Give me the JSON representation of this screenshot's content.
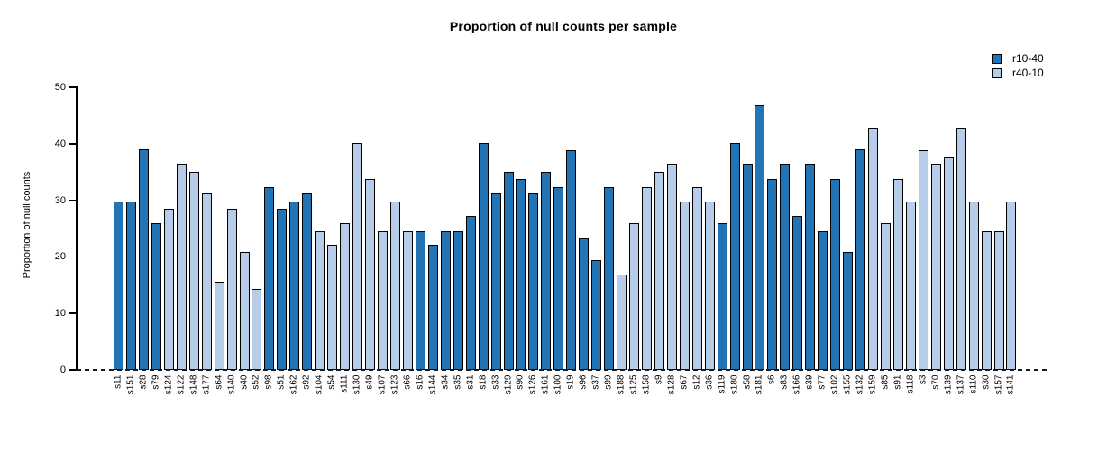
{
  "chart_data": {
    "type": "bar",
    "title": "Proportion of null counts per sample",
    "xlabel": "",
    "ylabel": "Proportion of null counts",
    "ylim": [
      0,
      50
    ],
    "yticks": [
      0,
      10,
      20,
      30,
      40,
      50
    ],
    "grid": false,
    "legend_position": "top-right",
    "zero_line_style": "dashed",
    "axis_color": "#000000",
    "bar_border_color": "#000000",
    "series": [
      {
        "name": "r10-40",
        "color": "#2374b5"
      },
      {
        "name": "r40-10",
        "color": "#b7cce8"
      }
    ],
    "bars": [
      {
        "label": "s11",
        "value": 29.8,
        "series": "r10-40"
      },
      {
        "label": "s151",
        "value": 29.8,
        "series": "r10-40"
      },
      {
        "label": "s28",
        "value": 39.0,
        "series": "r10-40"
      },
      {
        "label": "s79",
        "value": 26.0,
        "series": "r10-40"
      },
      {
        "label": "s124",
        "value": 28.5,
        "series": "r40-10"
      },
      {
        "label": "s122",
        "value": 36.4,
        "series": "r40-10"
      },
      {
        "label": "s148",
        "value": 35.0,
        "series": "r40-10"
      },
      {
        "label": "s177",
        "value": 31.2,
        "series": "r40-10"
      },
      {
        "label": "s64",
        "value": 15.6,
        "series": "r40-10"
      },
      {
        "label": "s140",
        "value": 28.5,
        "series": "r40-10"
      },
      {
        "label": "s40",
        "value": 20.8,
        "series": "r40-10"
      },
      {
        "label": "s52",
        "value": 14.3,
        "series": "r40-10"
      },
      {
        "label": "s98",
        "value": 32.4,
        "series": "r10-40"
      },
      {
        "label": "s51",
        "value": 28.5,
        "series": "r10-40"
      },
      {
        "label": "s162",
        "value": 29.8,
        "series": "r10-40"
      },
      {
        "label": "s92",
        "value": 31.2,
        "series": "r10-40"
      },
      {
        "label": "s104",
        "value": 24.5,
        "series": "r40-10"
      },
      {
        "label": "s54",
        "value": 22.1,
        "series": "r40-10"
      },
      {
        "label": "s111",
        "value": 26.0,
        "series": "r40-10"
      },
      {
        "label": "s130",
        "value": 40.2,
        "series": "r40-10"
      },
      {
        "label": "s49",
        "value": 33.7,
        "series": "r40-10"
      },
      {
        "label": "s107",
        "value": 24.5,
        "series": "r40-10"
      },
      {
        "label": "s123",
        "value": 29.8,
        "series": "r40-10"
      },
      {
        "label": "s66",
        "value": 24.5,
        "series": "r40-10"
      },
      {
        "label": "s16",
        "value": 24.5,
        "series": "r10-40"
      },
      {
        "label": "s144",
        "value": 22.1,
        "series": "r10-40"
      },
      {
        "label": "s34",
        "value": 24.5,
        "series": "r10-40"
      },
      {
        "label": "s35",
        "value": 24.5,
        "series": "r10-40"
      },
      {
        "label": "s31",
        "value": 27.3,
        "series": "r10-40"
      },
      {
        "label": "s18",
        "value": 40.2,
        "series": "r10-40"
      },
      {
        "label": "s33",
        "value": 31.2,
        "series": "r10-40"
      },
      {
        "label": "s129",
        "value": 35.0,
        "series": "r10-40"
      },
      {
        "label": "s90",
        "value": 33.7,
        "series": "r10-40"
      },
      {
        "label": "s126",
        "value": 31.2,
        "series": "r10-40"
      },
      {
        "label": "s161",
        "value": 35.0,
        "series": "r10-40"
      },
      {
        "label": "s100",
        "value": 32.4,
        "series": "r10-40"
      },
      {
        "label": "s19",
        "value": 38.9,
        "series": "r10-40"
      },
      {
        "label": "s96",
        "value": 23.3,
        "series": "r10-40"
      },
      {
        "label": "s37",
        "value": 19.5,
        "series": "r10-40"
      },
      {
        "label": "s99",
        "value": 32.4,
        "series": "r10-40"
      },
      {
        "label": "s188",
        "value": 16.9,
        "series": "r40-10"
      },
      {
        "label": "s125",
        "value": 26.0,
        "series": "r40-10"
      },
      {
        "label": "s158",
        "value": 32.4,
        "series": "r40-10"
      },
      {
        "label": "s9",
        "value": 35.0,
        "series": "r40-10"
      },
      {
        "label": "s128",
        "value": 36.4,
        "series": "r40-10"
      },
      {
        "label": "s67",
        "value": 29.8,
        "series": "r40-10"
      },
      {
        "label": "s12",
        "value": 32.4,
        "series": "r40-10"
      },
      {
        "label": "s36",
        "value": 29.8,
        "series": "r40-10"
      },
      {
        "label": "s119",
        "value": 26.0,
        "series": "r10-40"
      },
      {
        "label": "s180",
        "value": 40.2,
        "series": "r10-40"
      },
      {
        "label": "s58",
        "value": 36.4,
        "series": "r10-40"
      },
      {
        "label": "s181",
        "value": 46.8,
        "series": "r10-40"
      },
      {
        "label": "s6",
        "value": 33.7,
        "series": "r10-40"
      },
      {
        "label": "s83",
        "value": 36.4,
        "series": "r10-40"
      },
      {
        "label": "s166",
        "value": 27.3,
        "series": "r10-40"
      },
      {
        "label": "s39",
        "value": 36.4,
        "series": "r10-40"
      },
      {
        "label": "s77",
        "value": 24.5,
        "series": "r10-40"
      },
      {
        "label": "s102",
        "value": 33.7,
        "series": "r10-40"
      },
      {
        "label": "s155",
        "value": 20.8,
        "series": "r10-40"
      },
      {
        "label": "s132",
        "value": 39.0,
        "series": "r10-40"
      },
      {
        "label": "s159",
        "value": 42.9,
        "series": "r40-10"
      },
      {
        "label": "s85",
        "value": 26.0,
        "series": "r40-10"
      },
      {
        "label": "s91",
        "value": 33.7,
        "series": "r40-10"
      },
      {
        "label": "s118",
        "value": 29.8,
        "series": "r40-10"
      },
      {
        "label": "s3",
        "value": 38.9,
        "series": "r40-10"
      },
      {
        "label": "s70",
        "value": 36.4,
        "series": "r40-10"
      },
      {
        "label": "s139",
        "value": 37.6,
        "series": "r40-10"
      },
      {
        "label": "s137",
        "value": 42.9,
        "series": "r40-10"
      },
      {
        "label": "s110",
        "value": 29.8,
        "series": "r40-10"
      },
      {
        "label": "s30",
        "value": 24.5,
        "series": "r40-10"
      },
      {
        "label": "s157",
        "value": 24.5,
        "series": "r40-10"
      },
      {
        "label": "s141",
        "value": 29.8,
        "series": "r40-10"
      }
    ]
  }
}
